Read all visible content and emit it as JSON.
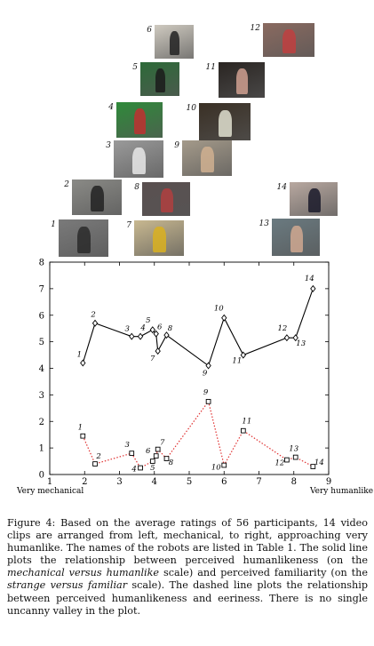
{
  "thumbnails": [
    {
      "id": "6",
      "side": "left",
      "bg": "#cfcac0",
      "fg": "#222222"
    },
    {
      "id": "5",
      "side": "left",
      "bg": "#2d6a38",
      "fg": "#1b1b1b"
    },
    {
      "id": "4",
      "side": "left",
      "bg": "#2f8a3a",
      "fg": "#c03030"
    },
    {
      "id": "3",
      "side": "left",
      "bg": "#9a9a9a",
      "fg": "#e8e8e8"
    },
    {
      "id": "2",
      "side": "left",
      "bg": "#8a8a86",
      "fg": "#222222"
    },
    {
      "id": "1",
      "side": "left",
      "bg": "#7a7a7a",
      "fg": "#2a2a2a"
    },
    {
      "id": "7",
      "side": "left",
      "bg": "#c8b890",
      "fg": "#d9b020"
    },
    {
      "id": "8",
      "side": "left",
      "bg": "#5a5050",
      "fg": "#b04040"
    },
    {
      "id": "9",
      "side": "left",
      "bg": "#a49a8a",
      "fg": "#d0b090"
    },
    {
      "id": "10",
      "side": "left",
      "bg": "#3a3025",
      "fg": "#e0e0d0"
    },
    {
      "id": "11",
      "side": "left",
      "bg": "#2a2522",
      "fg": "#d0a090"
    },
    {
      "id": "12",
      "side": "left",
      "bg": "#8a6a60",
      "fg": "#c04040"
    },
    {
      "id": "14",
      "side": "left",
      "bg": "#b8a8a0",
      "fg": "#1a1a2a"
    },
    {
      "id": "13",
      "side": "left",
      "bg": "#6a7a80",
      "fg": "#d0a890"
    }
  ],
  "chart_data": {
    "type": "line",
    "xlim": [
      1,
      9
    ],
    "ylim": [
      0,
      8
    ],
    "xticks": [
      "1",
      "2",
      "3",
      "4",
      "5",
      "6",
      "7",
      "8",
      "9"
    ],
    "yticks": [
      "0",
      "1",
      "2",
      "3",
      "4",
      "5",
      "6",
      "7",
      "8"
    ],
    "x_label_left": "Very mechanical",
    "x_label_right": "Very humanlike",
    "grid": false,
    "series": [
      {
        "style": "solid",
        "color": "#000000",
        "marker": "diamond",
        "points": [
          {
            "label": "1",
            "x": 1.95,
            "y": 4.2
          },
          {
            "label": "2",
            "x": 2.3,
            "y": 5.7
          },
          {
            "label": "3",
            "x": 3.35,
            "y": 5.2
          },
          {
            "label": "4",
            "x": 3.6,
            "y": 5.2
          },
          {
            "label": "5",
            "x": 3.95,
            "y": 5.45
          },
          {
            "label": "6",
            "x": 4.05,
            "y": 5.3
          },
          {
            "label": "7",
            "x": 4.1,
            "y": 4.65
          },
          {
            "label": "8",
            "x": 4.35,
            "y": 5.25
          },
          {
            "label": "9",
            "x": 5.55,
            "y": 4.1
          },
          {
            "label": "10",
            "x": 6.0,
            "y": 5.9
          },
          {
            "label": "11",
            "x": 6.55,
            "y": 4.5
          },
          {
            "label": "12",
            "x": 7.8,
            "y": 5.15
          },
          {
            "label": "13",
            "x": 8.05,
            "y": 5.15
          },
          {
            "label": "14",
            "x": 8.55,
            "y": 7.0
          }
        ]
      },
      {
        "style": "dashed",
        "color": "#e03030",
        "marker": "square",
        "points": [
          {
            "label": "1",
            "x": 1.95,
            "y": 1.45
          },
          {
            "label": "2",
            "x": 2.3,
            "y": 0.4
          },
          {
            "label": "3",
            "x": 3.35,
            "y": 0.8
          },
          {
            "label": "4",
            "x": 3.6,
            "y": 0.25
          },
          {
            "label": "5",
            "x": 3.95,
            "y": 0.5
          },
          {
            "label": "6",
            "x": 4.05,
            "y": 0.7
          },
          {
            "label": "7",
            "x": 4.1,
            "y": 0.95
          },
          {
            "label": "8",
            "x": 4.35,
            "y": 0.6
          },
          {
            "label": "9",
            "x": 5.55,
            "y": 2.75
          },
          {
            "label": "10",
            "x": 6.0,
            "y": 0.35
          },
          {
            "label": "11",
            "x": 6.55,
            "y": 1.65
          },
          {
            "label": "12",
            "x": 7.8,
            "y": 0.55
          },
          {
            "label": "13",
            "x": 8.05,
            "y": 0.65
          },
          {
            "label": "14",
            "x": 8.55,
            "y": 0.3
          }
        ]
      }
    ]
  },
  "caption": {
    "p1": "Figure 4:  Based on the average ratings of 56 participants, 14 video clips are arranged from left, mechanical, to right, approaching very humanlike.  The names of the robots are listed in Table 1.  The solid line plots the relationship between perceived humanlikeness (on the ",
    "em1": "mechanical versus humanlike",
    "p2": " scale) and perceived familiarity (on the ",
    "em2": "strange versus familiar",
    "p3": " scale).  The dashed line plots the relationship between perceived humanlikeness and eeriness.  There is no single uncanny valley in the plot."
  }
}
